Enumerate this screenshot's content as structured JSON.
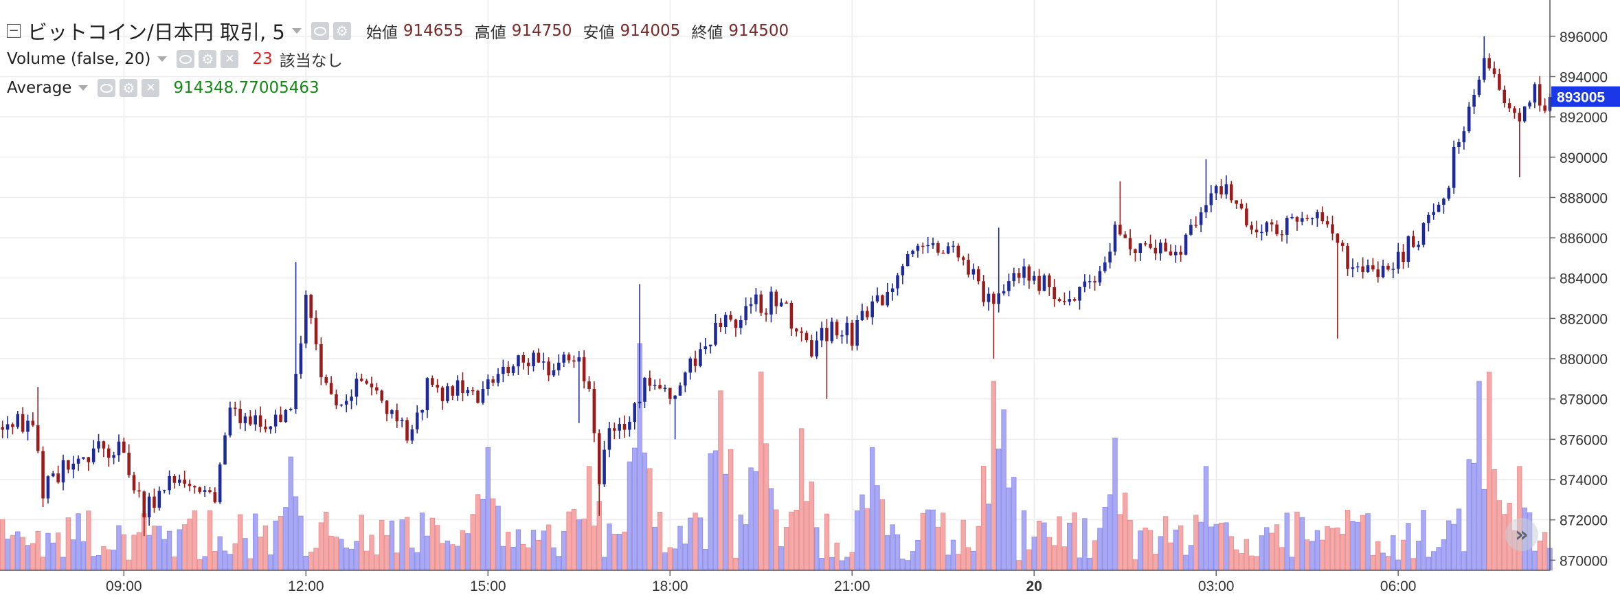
{
  "legend": {
    "symbol_title": "ビットコイン/日本円 取引, 5",
    "ohlc": [
      {
        "label": "始値",
        "value": "914655"
      },
      {
        "label": "高値",
        "value": "914750"
      },
      {
        "label": "安値",
        "value": "914005"
      },
      {
        "label": "終値",
        "value": "914500"
      }
    ],
    "volume_title": "Volume (false, 20)",
    "volume_value": "23",
    "volume_note": "該当なし",
    "average_title": "Average",
    "average_value": "914348.77005463"
  },
  "price_label": "893005",
  "colors": {
    "up": "#1e2a9a",
    "down": "#9b1b1b",
    "vol_up": "#a8a8f5",
    "vol_down": "#f5a8a8",
    "price_tag": "#1a37e8"
  },
  "chart_data": {
    "type": "candlestick",
    "y_axis_ticks": [
      "870000",
      "872000",
      "874000",
      "876000",
      "878000",
      "880000",
      "882000",
      "884000",
      "886000",
      "888000",
      "890000",
      "892000",
      "894000",
      "896000"
    ],
    "ylim": [
      869500,
      897800
    ],
    "x_axis_ticks": [
      {
        "label": "09:00",
        "t": 24,
        "bold": false
      },
      {
        "label": "12:00",
        "t": 60,
        "bold": false
      },
      {
        "label": "15:00",
        "t": 96,
        "bold": false
      },
      {
        "label": "18:00",
        "t": 132,
        "bold": false
      },
      {
        "label": "21:00",
        "t": 168,
        "bold": false
      },
      {
        "label": "20",
        "t": 204,
        "bold": true
      },
      {
        "label": "03:00",
        "t": 240,
        "bold": false
      },
      {
        "label": "06:00",
        "t": 276,
        "bold": false
      }
    ],
    "xlim": [
      -0.5,
      306
    ],
    "keypoints": [
      [
        0,
        876600
      ],
      [
        6,
        876800
      ],
      [
        8,
        873500
      ],
      [
        12,
        874500
      ],
      [
        18,
        875500
      ],
      [
        24,
        875500
      ],
      [
        28,
        872000
      ],
      [
        32,
        874000
      ],
      [
        38,
        873500
      ],
      [
        42,
        873200
      ],
      [
        45,
        877500
      ],
      [
        52,
        876500
      ],
      [
        57,
        877800
      ],
      [
        60,
        883000
      ],
      [
        63,
        879500
      ],
      [
        66,
        877500
      ],
      [
        70,
        878800
      ],
      [
        75,
        878200
      ],
      [
        80,
        876200
      ],
      [
        84,
        878500
      ],
      [
        88,
        878500
      ],
      [
        92,
        878000
      ],
      [
        96,
        878700
      ],
      [
        100,
        879700
      ],
      [
        104,
        880000
      ],
      [
        108,
        879400
      ],
      [
        112,
        880300
      ],
      [
        114,
        880000
      ],
      [
        116,
        878200
      ],
      [
        118,
        874000
      ],
      [
        120,
        876000
      ],
      [
        124,
        876700
      ],
      [
        127,
        879000
      ],
      [
        130,
        878000
      ],
      [
        134,
        878500
      ],
      [
        138,
        880500
      ],
      [
        142,
        881800
      ],
      [
        146,
        882200
      ],
      [
        150,
        882600
      ],
      [
        154,
        882800
      ],
      [
        158,
        881200
      ],
      [
        160,
        880300
      ],
      [
        164,
        881800
      ],
      [
        168,
        881200
      ],
      [
        172,
        882900
      ],
      [
        176,
        883400
      ],
      [
        180,
        885500
      ],
      [
        184,
        885800
      ],
      [
        188,
        885500
      ],
      [
        192,
        884500
      ],
      [
        196,
        882200
      ],
      [
        198,
        883500
      ],
      [
        202,
        884200
      ],
      [
        206,
        883800
      ],
      [
        210,
        882800
      ],
      [
        214,
        883500
      ],
      [
        218,
        884200
      ],
      [
        220,
        886500
      ],
      [
        223,
        885200
      ],
      [
        228,
        885600
      ],
      [
        232,
        885300
      ],
      [
        236,
        886500
      ],
      [
        240,
        888500
      ],
      [
        244,
        887500
      ],
      [
        248,
        886500
      ],
      [
        252,
        886500
      ],
      [
        256,
        887200
      ],
      [
        260,
        887000
      ],
      [
        264,
        886000
      ],
      [
        267,
        884200
      ],
      [
        270,
        884800
      ],
      [
        274,
        884500
      ],
      [
        278,
        885500
      ],
      [
        282,
        886800
      ],
      [
        286,
        889000
      ],
      [
        290,
        892500
      ],
      [
        293,
        895000
      ],
      [
        296,
        893200
      ],
      [
        300,
        892200
      ],
      [
        303,
        893000
      ],
      [
        306,
        892500
      ]
    ],
    "spikes": [
      {
        "t": 58,
        "high": 884800
      },
      {
        "t": 114,
        "low": 876800
      },
      {
        "t": 118,
        "low": 872200
      },
      {
        "t": 126,
        "high": 883700
      },
      {
        "t": 133,
        "low": 876000
      },
      {
        "t": 163,
        "low": 878000
      },
      {
        "t": 196,
        "low": 880000
      },
      {
        "t": 197,
        "high": 886500
      },
      {
        "t": 221,
        "high": 888800
      },
      {
        "t": 238,
        "high": 889900
      },
      {
        "t": 264,
        "low": 881000
      },
      {
        "t": 293,
        "high": 896000
      },
      {
        "t": 300,
        "low": 889000
      },
      {
        "t": 28,
        "low": 871200
      },
      {
        "t": 7,
        "high": 878600
      }
    ],
    "volume_max": 24,
    "volume_peaks": [
      {
        "t": 57,
        "v": 12
      },
      {
        "t": 96,
        "v": 13
      },
      {
        "t": 116,
        "v": 11
      },
      {
        "t": 126,
        "v": 24
      },
      {
        "t": 142,
        "v": 19
      },
      {
        "t": 150,
        "v": 21
      },
      {
        "t": 158,
        "v": 15
      },
      {
        "t": 172,
        "v": 13
      },
      {
        "t": 196,
        "v": 20
      },
      {
        "t": 198,
        "v": 17
      },
      {
        "t": 220,
        "v": 14
      },
      {
        "t": 238,
        "v": 11
      },
      {
        "t": 292,
        "v": 20
      },
      {
        "t": 294,
        "v": 21
      },
      {
        "t": 300,
        "v": 11
      }
    ]
  }
}
